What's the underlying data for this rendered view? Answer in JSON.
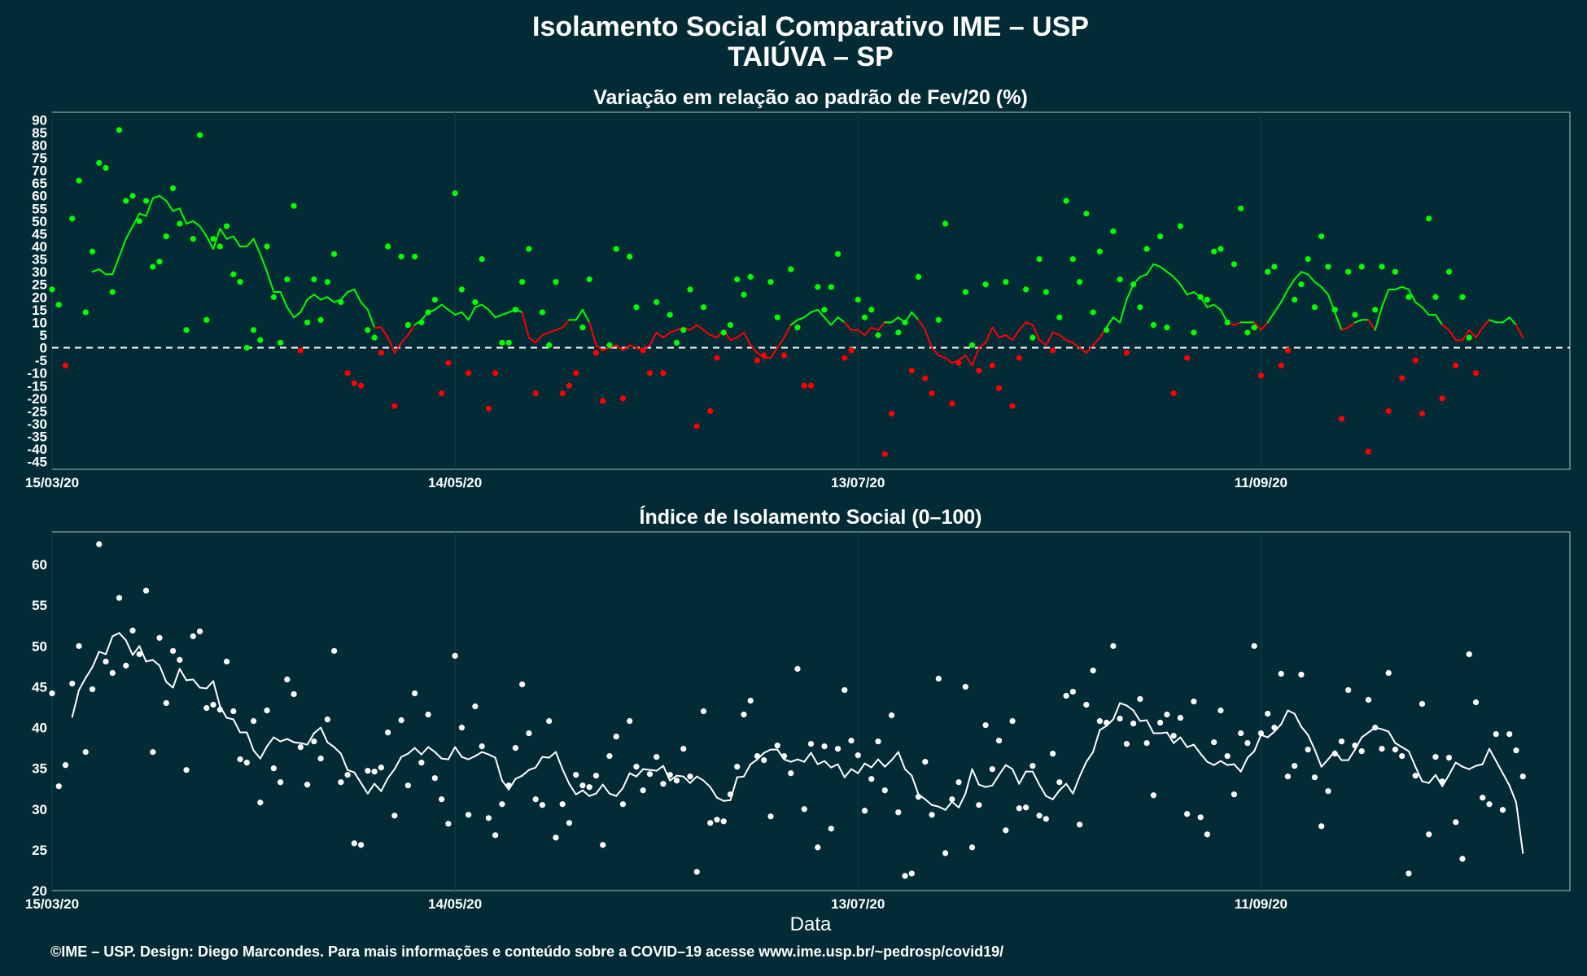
{
  "title_line1": "Isolamento Social Comparativo IME – USP",
  "title_line2": "TAIÚVA – SP",
  "caption": "©IME – USP. Design: Diego Marcondes. Para mais informações e conteúdo sobre a COVID–19 acesse www.ime.usp.br/~pedrosp/covid19/",
  "colors": {
    "background": "#022b36",
    "above": "#00ff00",
    "below": "#ff0000",
    "index": "#ffffff"
  },
  "chart_data": [
    {
      "type": "scatter",
      "title": "Variação em relação ao padrão de Fev/20 (%)",
      "xlabel": "",
      "ylabel": "",
      "x_ticks": [
        "15/03/20",
        "14/05/20",
        "13/07/20",
        "11/09/20"
      ],
      "x_range": [
        "2020-03-15",
        "2020-10-27"
      ],
      "ylim": [
        -48,
        93
      ],
      "y_ticks": [
        -45,
        -40,
        -35,
        -30,
        -25,
        -20,
        -15,
        -10,
        -5,
        0,
        5,
        10,
        15,
        20,
        25,
        30,
        35,
        40,
        45,
        50,
        55,
        60,
        65,
        70,
        75,
        80,
        85,
        90
      ],
      "reference_line": 0,
      "grid": true,
      "series": [
        {
          "kind": "points",
          "start_date": "2020-03-15",
          "values": [
            23,
            17,
            -7,
            51,
            66,
            14,
            38,
            73,
            71,
            22,
            86,
            58,
            60,
            50,
            58,
            32,
            34,
            44,
            63,
            49,
            7,
            43,
            84,
            11,
            43,
            40,
            48,
            29,
            26,
            0,
            7,
            3,
            40,
            20,
            2,
            27,
            56,
            -1,
            10,
            27,
            11,
            26,
            37,
            18,
            -10,
            -14,
            -15,
            7,
            4,
            -2,
            40,
            -23,
            36,
            9,
            36,
            10,
            14,
            19,
            -18,
            -6,
            61,
            23,
            -10,
            18,
            35,
            -24,
            -10,
            2,
            2,
            15,
            26,
            39,
            -18,
            14,
            1,
            26,
            -18,
            -15,
            -10,
            8,
            27,
            -2,
            -21,
            1,
            39,
            -20,
            36,
            16,
            -1,
            -10,
            18,
            -10,
            13,
            2,
            7,
            23,
            -31,
            16,
            -25,
            -4,
            6,
            9,
            27,
            21,
            28,
            -5,
            -3,
            26,
            12,
            -3,
            31,
            8,
            -15,
            -15,
            24,
            15,
            24,
            37,
            -4,
            -1,
            19,
            12,
            15,
            5,
            -42,
            -26,
            6,
            10,
            -9,
            28,
            -12,
            -18,
            11,
            49,
            -22,
            -6,
            22,
            1,
            -9,
            25,
            -7,
            -16,
            26,
            -23,
            -4,
            23,
            4,
            35,
            22,
            -1,
            12,
            58,
            35,
            26,
            53,
            14,
            38,
            7,
            46,
            27,
            -2,
            25,
            16,
            39,
            9,
            44,
            8,
            -18,
            48,
            -4,
            6,
            20,
            19,
            38,
            39,
            10,
            33,
            55,
            6,
            8,
            -11,
            30,
            32,
            -7,
            -1,
            19,
            25,
            35,
            16,
            44,
            32,
            15,
            -28,
            30,
            13,
            32,
            -41,
            15,
            32,
            -25,
            30,
            -12,
            20,
            -5,
            -26,
            51,
            20,
            -20,
            30,
            -7,
            20,
            4,
            -10
          ]
        },
        {
          "kind": "line",
          "start_date": "2020-03-21",
          "values": [
            30,
            31,
            29,
            29,
            36,
            43,
            48,
            53,
            52,
            59,
            60,
            58,
            54,
            55,
            49,
            50,
            48,
            44,
            39,
            47,
            43,
            44,
            40,
            40,
            43,
            37,
            30,
            22,
            22,
            16,
            12,
            14,
            19,
            21,
            19,
            20,
            18,
            19,
            22,
            23,
            18,
            15,
            8,
            8,
            4,
            -2,
            2,
            5,
            9,
            11,
            14,
            15,
            17,
            15,
            13,
            14,
            11,
            16,
            17,
            15,
            12,
            13,
            14,
            15,
            14,
            4,
            2,
            5,
            6,
            7,
            8,
            11,
            11,
            15,
            10,
            1,
            -1,
            0,
            1,
            -1,
            1,
            0,
            -1,
            1,
            6,
            4,
            6,
            7,
            8,
            7,
            9,
            7,
            5,
            4,
            7,
            3,
            4,
            6,
            1,
            -2,
            -4,
            -4,
            0,
            4,
            9,
            11,
            12,
            14,
            15,
            12,
            9,
            12,
            10,
            7,
            7,
            5,
            8,
            7,
            10,
            10,
            12,
            10,
            14,
            11,
            7,
            0,
            -3,
            -4,
            -6,
            -5,
            -3,
            -7,
            0,
            2,
            8,
            4,
            5,
            3,
            7,
            10,
            9,
            3,
            1,
            6,
            5,
            3,
            2,
            0,
            -2,
            1,
            4,
            8,
            12,
            10,
            19,
            25,
            28,
            29,
            33,
            32,
            30,
            28,
            25,
            21,
            22,
            20,
            16,
            17,
            15,
            10,
            9,
            10,
            10,
            10,
            7,
            10,
            14,
            18,
            23,
            27,
            30,
            29,
            26,
            24,
            21,
            14,
            7,
            8,
            10,
            11,
            11,
            7,
            16,
            23,
            23,
            24,
            23,
            18,
            16,
            13,
            13,
            9,
            7,
            3,
            3,
            7,
            4,
            8,
            11,
            10,
            10,
            12,
            9,
            4
          ]
        }
      ]
    },
    {
      "type": "scatter",
      "title": "Índice de Isolamento Social (0–100)",
      "xlabel": "Data",
      "ylabel": "",
      "x_ticks": [
        "15/03/20",
        "14/05/20",
        "13/07/20",
        "11/09/20"
      ],
      "x_range": [
        "2020-03-15",
        "2020-10-27"
      ],
      "ylim": [
        20,
        64
      ],
      "y_ticks": [
        20,
        25,
        30,
        35,
        40,
        45,
        50,
        55,
        60
      ],
      "grid": true,
      "series": [
        {
          "kind": "points",
          "start_date": "2020-03-15",
          "values": [
            44.2,
            32.8,
            35.4,
            45.4,
            50.0,
            37.0,
            44.7,
            62.5,
            48.1,
            46.7,
            55.9,
            47.6,
            51.9,
            49.0,
            56.8,
            37.0,
            51.0,
            43.0,
            49.4,
            48.3,
            34.8,
            51.2,
            51.8,
            42.4,
            42.8,
            42.2,
            48.1,
            42.0,
            36.1,
            35.7,
            40.8,
            30.8,
            42.1,
            35.0,
            33.3,
            45.9,
            44.1,
            37.6,
            33.0,
            38.3,
            36.2,
            41.0,
            49.4,
            33.3,
            34.2,
            25.8,
            25.6,
            34.7,
            34.6,
            35.1,
            39.4,
            29.2,
            40.9,
            32.9,
            44.2,
            35.7,
            41.6,
            33.8,
            31.2,
            28.2,
            48.8,
            40.0,
            29.3,
            42.6,
            37.7,
            28.9,
            26.8,
            30.6,
            32.9,
            37.5,
            45.3,
            39.3,
            31.2,
            30.5,
            40.8,
            26.5,
            30.6,
            28.3,
            34.2,
            32.9,
            32.7,
            34.1,
            25.6,
            36.5,
            38.9,
            30.6,
            40.8,
            35.2,
            32.3,
            34.3,
            36.4,
            33.1,
            34.2,
            33.5,
            37.4,
            34.0,
            22.3,
            42.0,
            28.3,
            28.7,
            28.5,
            31.8,
            35.2,
            41.6,
            43.3,
            36.5,
            36.0,
            29.1,
            37.8,
            36.5,
            34.4,
            47.2,
            30.0,
            38.0,
            25.3,
            37.7,
            27.6,
            37.4,
            44.6,
            38.4,
            36.6,
            29.8,
            33.7,
            38.3,
            32.3,
            41.5,
            29.6,
            21.8,
            22.1,
            31.5,
            35.8,
            29.3,
            46.0,
            24.6,
            31.2,
            33.3,
            45.0,
            25.3,
            30.5,
            40.3,
            34.9,
            38.4,
            27.4,
            40.8,
            30.1,
            30.2,
            35.3,
            29.2,
            28.8,
            36.8,
            33.3,
            43.9,
            44.4,
            28.1,
            42.8,
            47.0,
            40.8,
            40.6,
            50.0,
            41.1,
            38.0,
            40.5,
            43.5,
            38.1,
            31.7,
            40.6,
            41.6,
            39.0,
            41.2,
            29.4,
            43.2,
            29.0,
            26.9,
            38.2,
            42.1,
            36.5,
            31.8,
            39.3,
            38.1,
            50.0,
            39.3,
            41.7,
            40.0,
            46.6,
            34.0,
            35.3,
            46.5,
            37.3,
            33.9,
            27.9,
            32.2,
            36.8,
            38.3,
            44.6,
            37.8,
            37.1,
            43.4,
            40.0,
            37.4,
            46.7,
            37.3,
            36.5,
            22.1,
            34.1,
            42.9,
            26.9,
            36.4,
            33.4,
            36.3,
            28.4,
            23.9,
            49.0,
            43.1,
            31.4,
            30.6,
            39.2,
            29.9,
            39.2,
            37.2,
            34.0
          ]
        },
        {
          "kind": "line",
          "start_date": "2020-03-18",
          "values": [
            41.3,
            44.6,
            46.1,
            47.4,
            49.3,
            49.0,
            51.2,
            51.6,
            50.7,
            48.9,
            50.0,
            48.1,
            48.3,
            47.6,
            45.6,
            44.9,
            47.2,
            45.8,
            45.9,
            44.9,
            44.8,
            45.7,
            42.6,
            41.2,
            41.0,
            39.4,
            39.4,
            37.2,
            36.2,
            37.7,
            38.8,
            38.3,
            38.6,
            38.2,
            38.1,
            37.9,
            39.3,
            40.0,
            38.2,
            37.6,
            36.8,
            34.8,
            34.5,
            33.2,
            31.9,
            33.1,
            32.2,
            33.8,
            34.9,
            36.4,
            36.8,
            37.5,
            36.7,
            37.6,
            37.0,
            36.2,
            36.1,
            37.6,
            36.4,
            36.1,
            36.5,
            37.0,
            36.7,
            36.3,
            33.5,
            32.4,
            33.7,
            34.1,
            34.8,
            35.1,
            36.4,
            36.3,
            37.0,
            34.9,
            33.1,
            31.8,
            32.3,
            31.6,
            31.9,
            33.0,
            31.9,
            31.6,
            32.6,
            34.4,
            34.0,
            34.9,
            34.8,
            34.7,
            35.3,
            33.5,
            34.1,
            34.0,
            33.2,
            34.0,
            33.5,
            32.7,
            31.4,
            31.0,
            31.1,
            33.9,
            34.0,
            35.5,
            36.1,
            36.9,
            37.3,
            37.3,
            36.1,
            35.8,
            36.1,
            35.8,
            36.9,
            35.5,
            35.9,
            35.1,
            35.5,
            33.9,
            34.9,
            34.4,
            35.6,
            35.1,
            36.1,
            35.2,
            36.0,
            37.0,
            34.9,
            34.1,
            31.8,
            31.2,
            30.5,
            30.3,
            29.9,
            30.9,
            30.2,
            31.9,
            34.9,
            33.0,
            32.7,
            32.9,
            34.2,
            35.4,
            34.9,
            33.1,
            34.6,
            34.6,
            33.0,
            31.6,
            31.2,
            32.3,
            33.1,
            31.9,
            34.0,
            35.8,
            37.0,
            39.7,
            40.2,
            41.0,
            43.0,
            42.7,
            42.1,
            40.8,
            40.9,
            39.3,
            39.3,
            39.4,
            38.1,
            38.8,
            37.6,
            37.9,
            36.8,
            35.8,
            35.4,
            35.9,
            35.4,
            35.5,
            34.6,
            36.3,
            37.1,
            39.1,
            38.8,
            39.5,
            40.4,
            42.1,
            41.7,
            40.1,
            39.1,
            37.3,
            35.2,
            36.1,
            37.1,
            36.0,
            36.0,
            37.3,
            38.8,
            39.4,
            40.0,
            39.8,
            39.5,
            38.1,
            37.6,
            37.1,
            35.2,
            33.4,
            33.2,
            34.2,
            32.8,
            34.2,
            35.7,
            35.2,
            34.9,
            35.3,
            35.5,
            37.4,
            35.9,
            34.4,
            32.9,
            30.8,
            24.6
          ]
        }
      ]
    }
  ]
}
